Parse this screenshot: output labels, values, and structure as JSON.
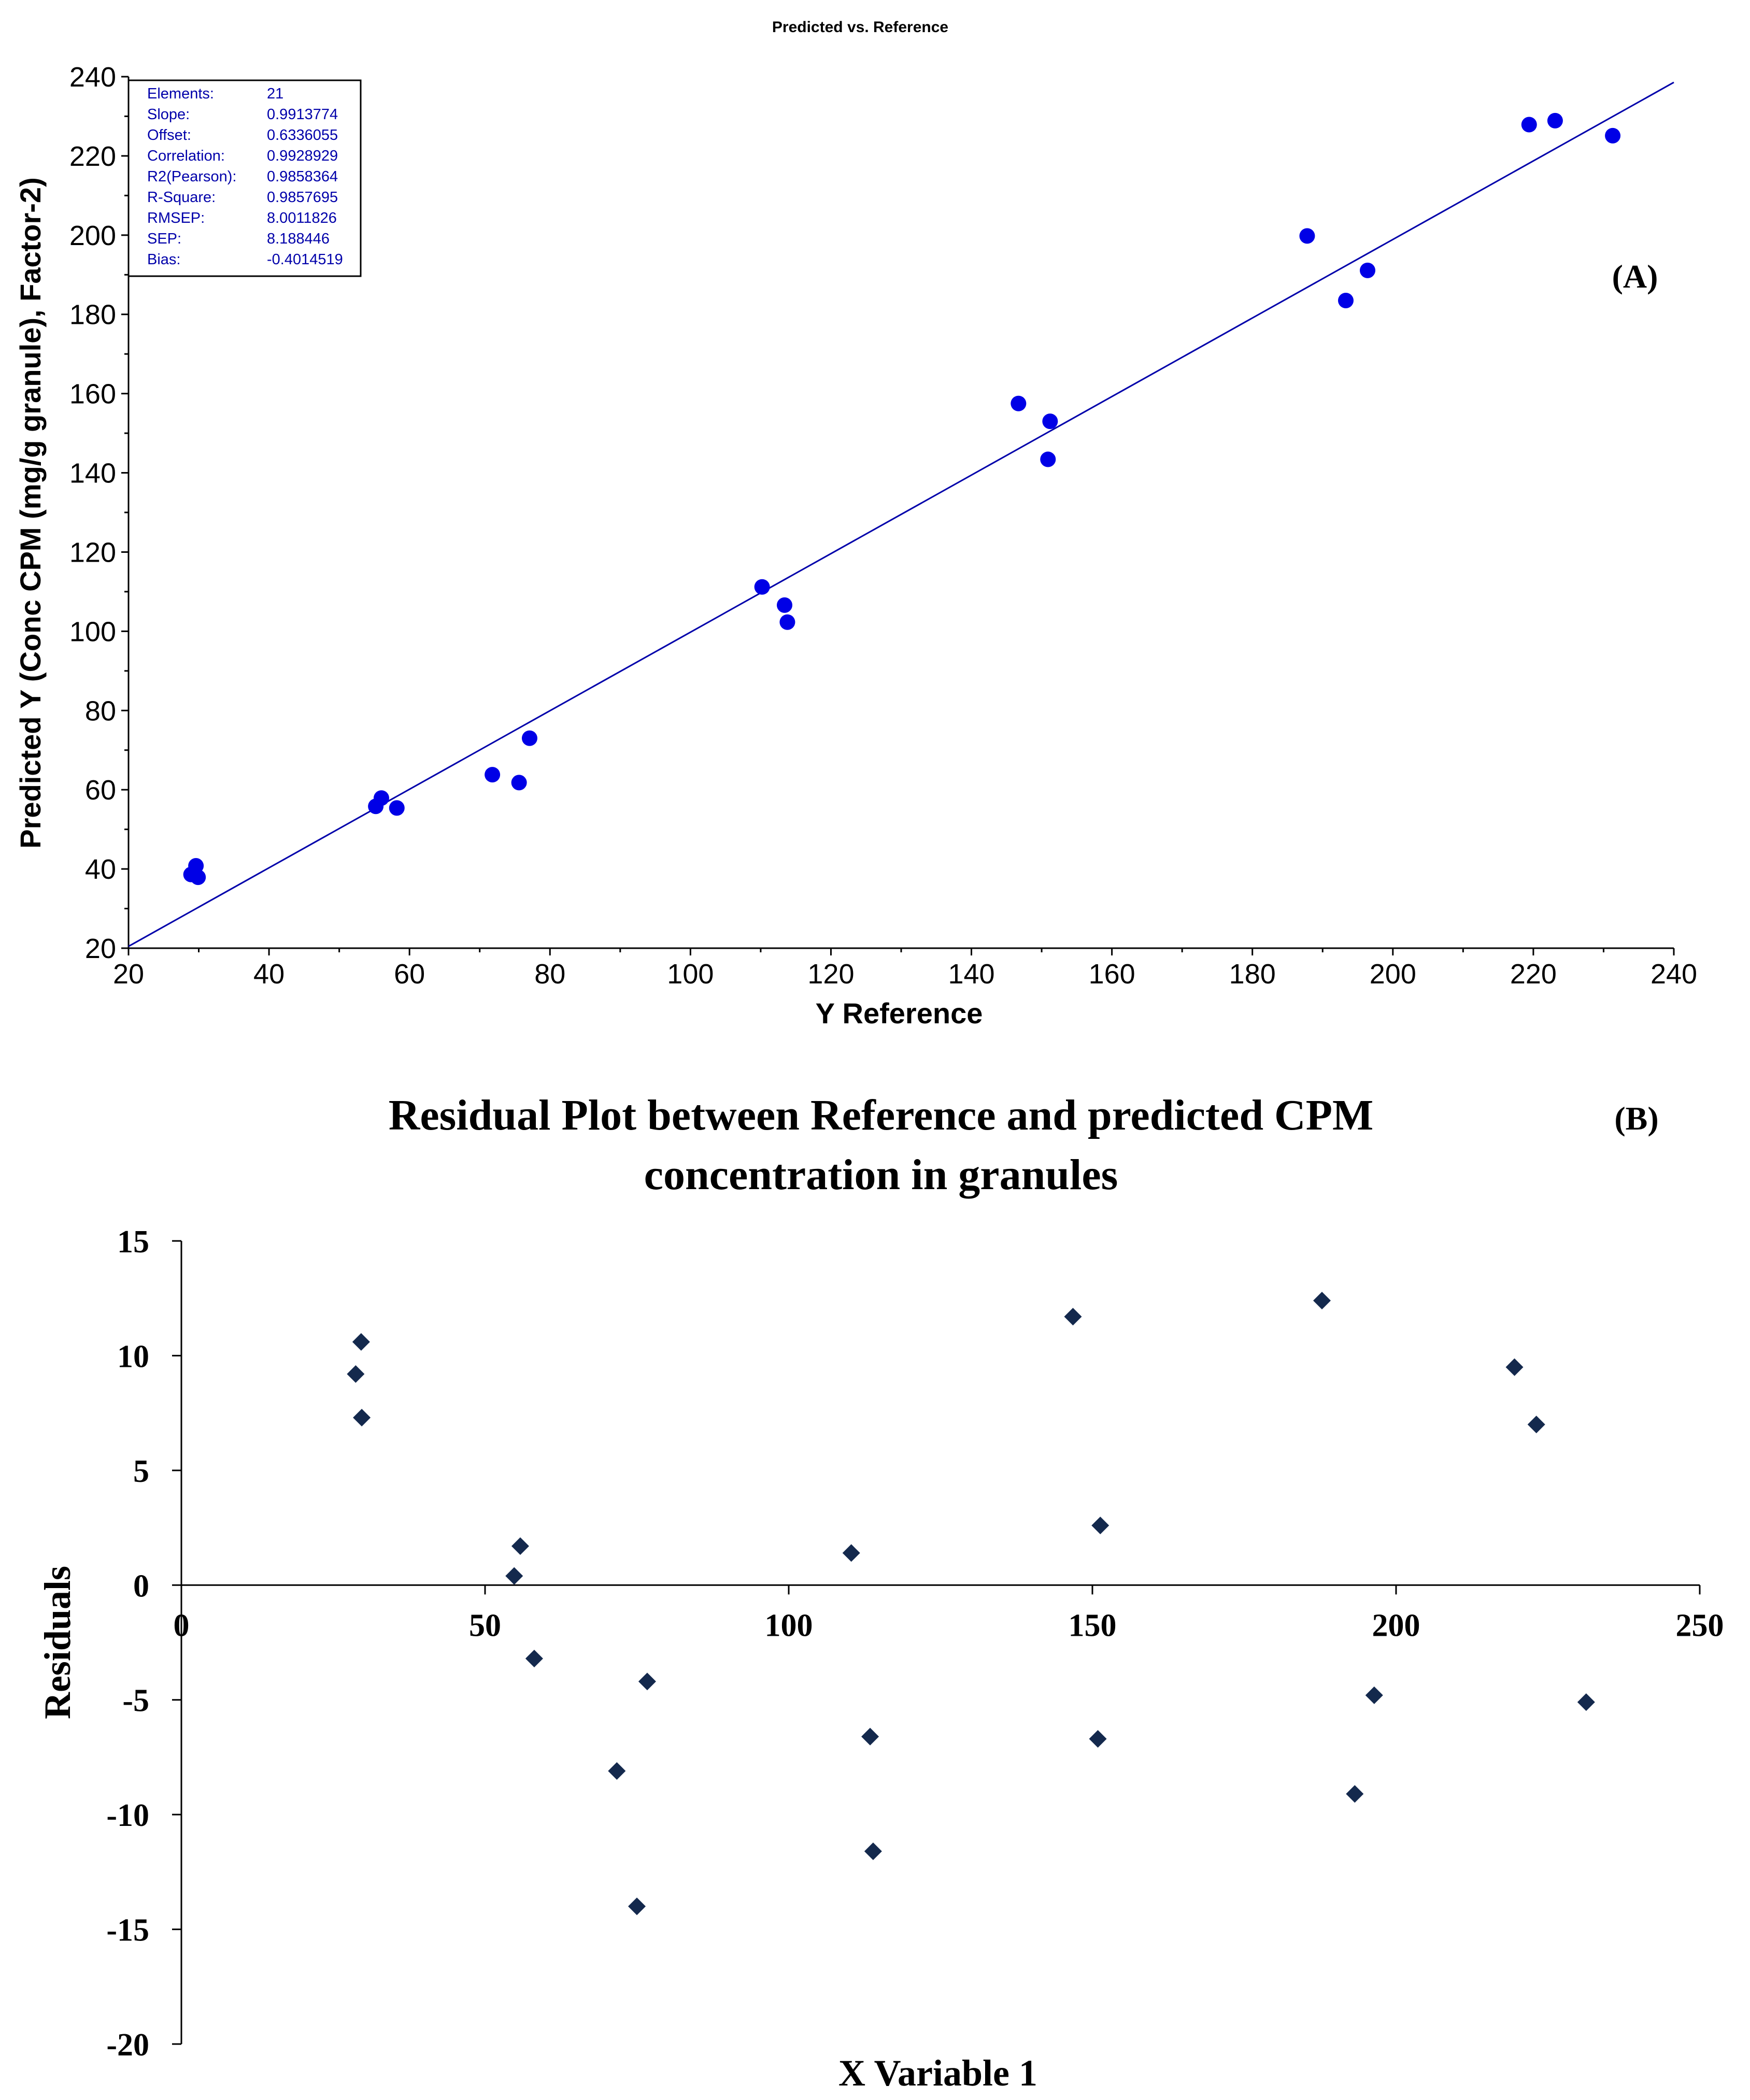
{
  "colors": {
    "point_a": "#0000e6",
    "fit_line": "#0000aa",
    "point_b": "#14294d",
    "stats_text": "#0000aa"
  },
  "chart_data": [
    {
      "type": "scatter",
      "title": "Predicted vs. Reference",
      "panel_label": "(A)",
      "xlabel": "Y Reference",
      "ylabel": "Predicted Y (Conc CPM (mg/g granule), Factor-2)",
      "xlim": [
        20,
        240
      ],
      "ylim": [
        20,
        240
      ],
      "xticks": [
        20,
        40,
        60,
        80,
        100,
        120,
        140,
        160,
        180,
        200,
        220,
        240
      ],
      "yticks": [
        20,
        40,
        60,
        80,
        100,
        120,
        140,
        160,
        180,
        200,
        220,
        240
      ],
      "fit_line": {
        "slope": 0.9913774,
        "offset": 0.6336055
      },
      "stats": [
        {
          "label": "Elements:",
          "value": "21"
        },
        {
          "label": "Slope:",
          "value": "0.9913774"
        },
        {
          "label": "Offset:",
          "value": "0.6336055"
        },
        {
          "label": "Correlation:",
          "value": "0.9928929"
        },
        {
          "label": "R2(Pearson):",
          "value": "0.9858364"
        },
        {
          "label": "R-Square:",
          "value": "0.9857695"
        },
        {
          "label": "RMSEP:",
          "value": "8.0011826"
        },
        {
          "label": "SEP:",
          "value": "8.188446"
        },
        {
          "label": "Bias:",
          "value": "-0.4014519"
        }
      ],
      "points": [
        {
          "x": 28.9,
          "y": 38.6
        },
        {
          "x": 29.6,
          "y": 40.8
        },
        {
          "x": 29.9,
          "y": 37.9
        },
        {
          "x": 55.2,
          "y": 55.8
        },
        {
          "x": 56.0,
          "y": 57.9
        },
        {
          "x": 58.2,
          "y": 55.4
        },
        {
          "x": 71.8,
          "y": 63.8
        },
        {
          "x": 75.6,
          "y": 61.8
        },
        {
          "x": 77.1,
          "y": 73.0
        },
        {
          "x": 110.2,
          "y": 111.2
        },
        {
          "x": 113.4,
          "y": 106.6
        },
        {
          "x": 113.8,
          "y": 102.3
        },
        {
          "x": 146.7,
          "y": 157.5
        },
        {
          "x": 150.9,
          "y": 143.4
        },
        {
          "x": 151.2,
          "y": 153.0
        },
        {
          "x": 187.8,
          "y": 199.8
        },
        {
          "x": 193.3,
          "y": 183.5
        },
        {
          "x": 196.4,
          "y": 191.1
        },
        {
          "x": 219.4,
          "y": 227.9
        },
        {
          "x": 223.1,
          "y": 228.9
        },
        {
          "x": 231.3,
          "y": 225.1
        }
      ]
    },
    {
      "type": "scatter",
      "title": "Residual Plot between Reference and predicted CPM concentration in granules",
      "title_lines": [
        "Residual Plot between Reference and predicted CPM",
        "concentration in granules"
      ],
      "panel_label": "(B)",
      "xlabel": "X Variable 1",
      "ylabel": "Residuals",
      "xlim": [
        0,
        250
      ],
      "ylim": [
        -20,
        15
      ],
      "xticks": [
        0,
        50,
        100,
        150,
        200,
        250
      ],
      "yticks": [
        15,
        10,
        5,
        0,
        -5,
        -10,
        -15,
        -20
      ],
      "points": [
        {
          "x": 28.7,
          "y": 9.2
        },
        {
          "x": 29.6,
          "y": 10.6
        },
        {
          "x": 29.7,
          "y": 7.3
        },
        {
          "x": 54.8,
          "y": 0.4
        },
        {
          "x": 55.8,
          "y": 1.7
        },
        {
          "x": 58.1,
          "y": -3.2
        },
        {
          "x": 71.7,
          "y": -8.1
        },
        {
          "x": 75.0,
          "y": -14.0
        },
        {
          "x": 76.7,
          "y": -4.2
        },
        {
          "x": 110.3,
          "y": 1.4
        },
        {
          "x": 113.4,
          "y": -6.6
        },
        {
          "x": 113.9,
          "y": -11.6
        },
        {
          "x": 146.8,
          "y": 11.7
        },
        {
          "x": 150.9,
          "y": -6.7
        },
        {
          "x": 151.3,
          "y": 2.6
        },
        {
          "x": 187.8,
          "y": 12.4
        },
        {
          "x": 193.2,
          "y": -9.1
        },
        {
          "x": 196.4,
          "y": -4.8
        },
        {
          "x": 219.5,
          "y": 9.5
        },
        {
          "x": 223.1,
          "y": 7.0
        },
        {
          "x": 231.3,
          "y": -5.1
        }
      ]
    }
  ]
}
